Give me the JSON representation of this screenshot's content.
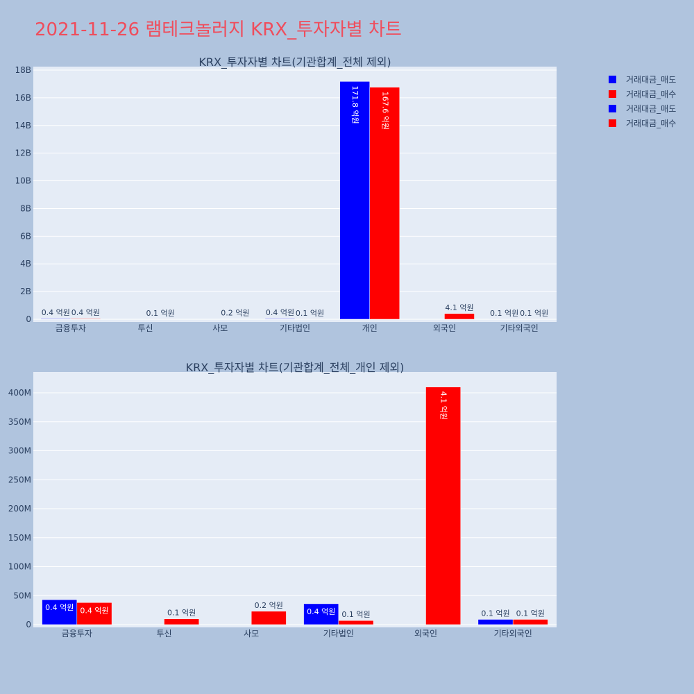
{
  "page_title": "2021-11-26 램테크놀러지 KRX_투자자별 차트",
  "legend": [
    {
      "label": "거래대금_매도",
      "color": "#0000ff"
    },
    {
      "label": "거래대금_매수",
      "color": "#ff0000"
    },
    {
      "label": "거래대금_매도",
      "color": "#0000ff"
    },
    {
      "label": "거래대금_매수",
      "color": "#ff0000"
    }
  ],
  "chart_data": [
    {
      "type": "bar",
      "title": "KRX_투자자별 차트(기관합계_전체 제외)",
      "categories": [
        "금융투자",
        "투신",
        "사모",
        "기타법인",
        "개인",
        "외국인",
        "기타외국인"
      ],
      "y_ticks": [
        "0",
        "2B",
        "4B",
        "6B",
        "8B",
        "10B",
        "12B",
        "14B",
        "16B",
        "18B"
      ],
      "ylim": [
        0,
        18000000000
      ],
      "series": [
        {
          "name": "거래대금_매도",
          "color": "#0000ff",
          "values": [
            40000000,
            0,
            0,
            40000000,
            17180000000,
            0,
            10000000
          ],
          "labels": [
            "0.4 억원",
            "",
            "",
            "0.4 억원",
            "171.8 억원",
            "",
            "0.1 억원"
          ]
        },
        {
          "name": "거래대금_매수",
          "color": "#ff0000",
          "values": [
            40000000,
            10000000,
            20000000,
            10000000,
            16760000000,
            410000000,
            10000000
          ],
          "labels": [
            "0.4 억원",
            "0.1 억원",
            "0.2 억원",
            "0.1 억원",
            "167.6 억원",
            "4.1 억원",
            "0.1 억원"
          ]
        }
      ]
    },
    {
      "type": "bar",
      "title": "KRX_투자자별 차트(기관합계_전체_개인 제외)",
      "categories": [
        "금융투자",
        "투신",
        "사모",
        "기타법인",
        "외국인",
        "기타외국인"
      ],
      "y_ticks": [
        "0",
        "50M",
        "100M",
        "150M",
        "200M",
        "250M",
        "300M",
        "350M",
        "400M"
      ],
      "ylim": [
        0,
        400000000
      ],
      "series": [
        {
          "name": "거래대금_매도",
          "color": "#0000ff",
          "values": [
            43000000,
            0,
            0,
            36000000,
            0,
            9000000
          ],
          "labels": [
            "0.4 억원",
            "",
            "",
            "0.4 억원",
            "",
            "0.1 억원"
          ]
        },
        {
          "name": "거래대금_매수",
          "color": "#ff0000",
          "values": [
            38000000,
            10000000,
            23000000,
            7000000,
            410000000,
            9000000
          ],
          "labels": [
            "0.4 억원",
            "0.1 억원",
            "0.2 억원",
            "0.1 억원",
            "4.1 억원",
            "0.1 억원"
          ]
        }
      ]
    }
  ]
}
